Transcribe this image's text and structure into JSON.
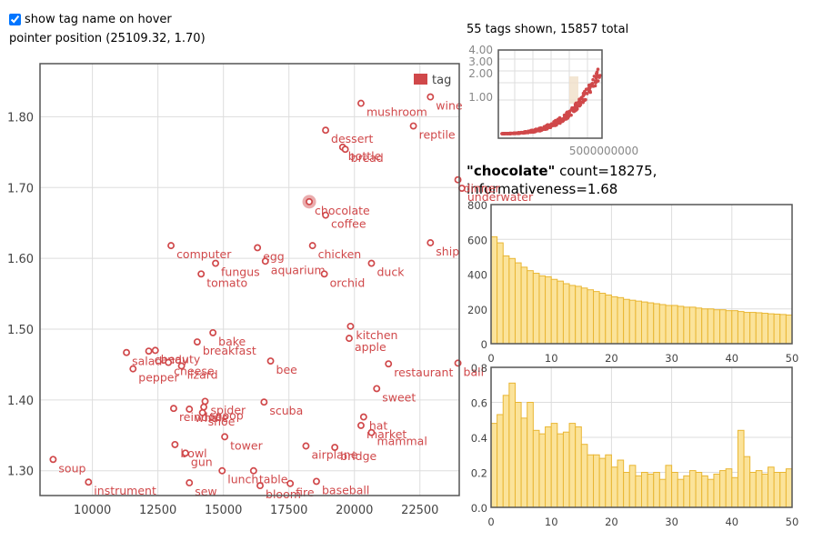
{
  "controls": {
    "show_tag_label": "show tag name on hover",
    "show_tag_checked": true,
    "pointer_label": "pointer position (25109.32, 1.70)"
  },
  "summary": "55 tags shown, 15857 total",
  "detail": {
    "name": "\"chocolate\"",
    "count_text": " count=18275,",
    "info_text": "informativeness=1.68"
  },
  "colors": {
    "point": "#d0484a",
    "bar_fill": "#fbe39a",
    "bar_stroke": "#e9b633",
    "grid": "#dddddd"
  },
  "chart_data": [
    {
      "type": "scatter",
      "legend": "tag",
      "xlim": [
        8000,
        24000
      ],
      "ylim": [
        1.265,
        1.875
      ],
      "x_ticks": [
        10000,
        12500,
        15000,
        17500,
        20000,
        22500
      ],
      "y_ticks": [
        1.3,
        1.4,
        1.5,
        1.6,
        1.7,
        1.8
      ],
      "x_tick_labels": [
        "10000",
        "12500",
        "15000",
        "17500",
        "20000",
        "22500"
      ],
      "y_tick_labels": [
        "1.30",
        "1.40",
        "1.50",
        "1.60",
        "1.70",
        "1.80"
      ],
      "highlighted": "chocolate",
      "points": [
        {
          "label": "soup",
          "x": 8500,
          "y": 1.316
        },
        {
          "label": "instrument",
          "x": 9850,
          "y": 1.284
        },
        {
          "label": "salad",
          "x": 11300,
          "y": 1.467
        },
        {
          "label": "pepper",
          "x": 11550,
          "y": 1.444
        },
        {
          "label": "candy",
          "x": 12150,
          "y": 1.469
        },
        {
          "label": "beauty",
          "x": 12400,
          "y": 1.47
        },
        {
          "label": "cheese",
          "x": 12900,
          "y": 1.453
        },
        {
          "label": "lizard",
          "x": 13400,
          "y": 1.448
        },
        {
          "label": "computer",
          "x": 13000,
          "y": 1.618
        },
        {
          "label": "tomato",
          "x": 14150,
          "y": 1.578
        },
        {
          "label": "fungus",
          "x": 14700,
          "y": 1.593
        },
        {
          "label": "breakfast",
          "x": 14000,
          "y": 1.482
        },
        {
          "label": "bake",
          "x": 14600,
          "y": 1.495
        },
        {
          "label": "egg",
          "x": 16300,
          "y": 1.615
        },
        {
          "label": "aquarium",
          "x": 16600,
          "y": 1.596
        },
        {
          "label": "bee",
          "x": 16800,
          "y": 1.455
        },
        {
          "label": "chicken",
          "x": 18400,
          "y": 1.618
        },
        {
          "label": "orchid",
          "x": 18850,
          "y": 1.578
        },
        {
          "label": "duck",
          "x": 20650,
          "y": 1.593
        },
        {
          "label": "ship",
          "x": 22900,
          "y": 1.622
        },
        {
          "label": "chocolate",
          "x": 18275,
          "y": 1.68
        },
        {
          "label": "coffee",
          "x": 18900,
          "y": 1.661
        },
        {
          "label": "mushroom",
          "x": 20250,
          "y": 1.819
        },
        {
          "label": "wine",
          "x": 22900,
          "y": 1.828
        },
        {
          "label": "dessert",
          "x": 18900,
          "y": 1.781
        },
        {
          "label": "reptile",
          "x": 22250,
          "y": 1.787
        },
        {
          "label": "bottle",
          "x": 19550,
          "y": 1.757
        },
        {
          "label": "bread",
          "x": 19650,
          "y": 1.754
        },
        {
          "label": "dinner",
          "x": 23950,
          "y": 1.711
        },
        {
          "label": "underwater",
          "x": 24100,
          "y": 1.699
        },
        {
          "label": "kitchen",
          "x": 19850,
          "y": 1.504
        },
        {
          "label": "apple",
          "x": 19800,
          "y": 1.487
        },
        {
          "label": "restaurant",
          "x": 21300,
          "y": 1.451
        },
        {
          "label": "ball",
          "x": 23950,
          "y": 1.452
        },
        {
          "label": "sweet",
          "x": 20850,
          "y": 1.416
        },
        {
          "label": "scuba",
          "x": 16550,
          "y": 1.397
        },
        {
          "label": "spider",
          "x": 14300,
          "y": 1.398
        },
        {
          "label": "snoop",
          "x": 14250,
          "y": 1.39
        },
        {
          "label": "reindeer",
          "x": 13100,
          "y": 1.388
        },
        {
          "label": "whale",
          "x": 13700,
          "y": 1.387
        },
        {
          "label": "shoe",
          "x": 14200,
          "y": 1.382
        },
        {
          "label": "hat",
          "x": 20350,
          "y": 1.376
        },
        {
          "label": "market",
          "x": 20250,
          "y": 1.364
        },
        {
          "label": "mammal",
          "x": 20650,
          "y": 1.354
        },
        {
          "label": "tower",
          "x": 15050,
          "y": 1.348
        },
        {
          "label": "bowl",
          "x": 13150,
          "y": 1.337
        },
        {
          "label": "gun",
          "x": 13550,
          "y": 1.325
        },
        {
          "label": "airplane",
          "x": 18150,
          "y": 1.335
        },
        {
          "label": "bridge",
          "x": 19250,
          "y": 1.333
        },
        {
          "label": "lunch",
          "x": 14950,
          "y": 1.3
        },
        {
          "label": "table",
          "x": 16150,
          "y": 1.3
        },
        {
          "label": "sew",
          "x": 13700,
          "y": 1.283
        },
        {
          "label": "bloom",
          "x": 16400,
          "y": 1.279
        },
        {
          "label": "fire",
          "x": 17550,
          "y": 1.282
        },
        {
          "label": "baseball",
          "x": 18550,
          "y": 1.285
        }
      ]
    },
    {
      "type": "scatter",
      "title": "overview",
      "y_tick_labels": [
        "4.00",
        "3.00",
        "2.00",
        "1.00"
      ],
      "x_tick_labels": [
        "5000000000"
      ]
    },
    {
      "type": "bar",
      "x": [
        0,
        1,
        2,
        3,
        4,
        5,
        6,
        7,
        8,
        9,
        10,
        11,
        12,
        13,
        14,
        15,
        16,
        17,
        18,
        19,
        20,
        21,
        22,
        23,
        24,
        25,
        26,
        27,
        28,
        29,
        30,
        31,
        32,
        33,
        34,
        35,
        36,
        37,
        38,
        39,
        40,
        41,
        42,
        43,
        44,
        45,
        46,
        47,
        48,
        49,
        50
      ],
      "values": [
        615,
        580,
        505,
        490,
        465,
        440,
        420,
        405,
        390,
        385,
        370,
        360,
        345,
        335,
        330,
        320,
        310,
        300,
        290,
        280,
        270,
        265,
        255,
        250,
        245,
        240,
        235,
        230,
        225,
        220,
        220,
        215,
        210,
        210,
        205,
        200,
        200,
        195,
        195,
        190,
        190,
        185,
        180,
        180,
        178,
        175,
        172,
        170,
        168,
        165,
        160
      ],
      "xlim": [
        0,
        50
      ],
      "ylim": [
        0,
        800
      ],
      "x_ticks": [
        0,
        10,
        20,
        30,
        40,
        50
      ],
      "y_ticks": [
        0,
        200,
        400,
        600,
        800
      ],
      "x_tick_labels": [
        "0",
        "10",
        "20",
        "30",
        "40",
        "50"
      ],
      "y_tick_labels": [
        "0",
        "200",
        "400",
        "600",
        "800"
      ]
    },
    {
      "type": "bar",
      "x": [
        0,
        1,
        2,
        3,
        4,
        5,
        6,
        7,
        8,
        9,
        10,
        11,
        12,
        13,
        14,
        15,
        16,
        17,
        18,
        19,
        20,
        21,
        22,
        23,
        24,
        25,
        26,
        27,
        28,
        29,
        30,
        31,
        32,
        33,
        34,
        35,
        36,
        37,
        38,
        39,
        40,
        41,
        42,
        43,
        44,
        45,
        46,
        47,
        48,
        49,
        50
      ],
      "values": [
        0.48,
        0.53,
        0.64,
        0.71,
        0.6,
        0.51,
        0.6,
        0.44,
        0.42,
        0.46,
        0.48,
        0.42,
        0.43,
        0.48,
        0.46,
        0.36,
        0.3,
        0.3,
        0.28,
        0.3,
        0.23,
        0.27,
        0.2,
        0.24,
        0.18,
        0.2,
        0.19,
        0.2,
        0.16,
        0.24,
        0.2,
        0.16,
        0.18,
        0.21,
        0.2,
        0.18,
        0.16,
        0.19,
        0.21,
        0.22,
        0.17,
        0.44,
        0.29,
        0.2,
        0.21,
        0.19,
        0.23,
        0.2,
        0.2,
        0.22,
        0.3
      ],
      "xlim": [
        0,
        50
      ],
      "ylim": [
        0,
        0.8
      ],
      "x_ticks": [
        0,
        10,
        20,
        30,
        40,
        50
      ],
      "y_ticks": [
        0,
        0.2,
        0.4,
        0.6,
        0.8
      ],
      "x_tick_labels": [
        "0",
        "10",
        "20",
        "30",
        "40",
        "50"
      ],
      "y_tick_labels": [
        "0.0",
        "0.2",
        "0.4",
        "0.6",
        "0.8"
      ]
    }
  ]
}
